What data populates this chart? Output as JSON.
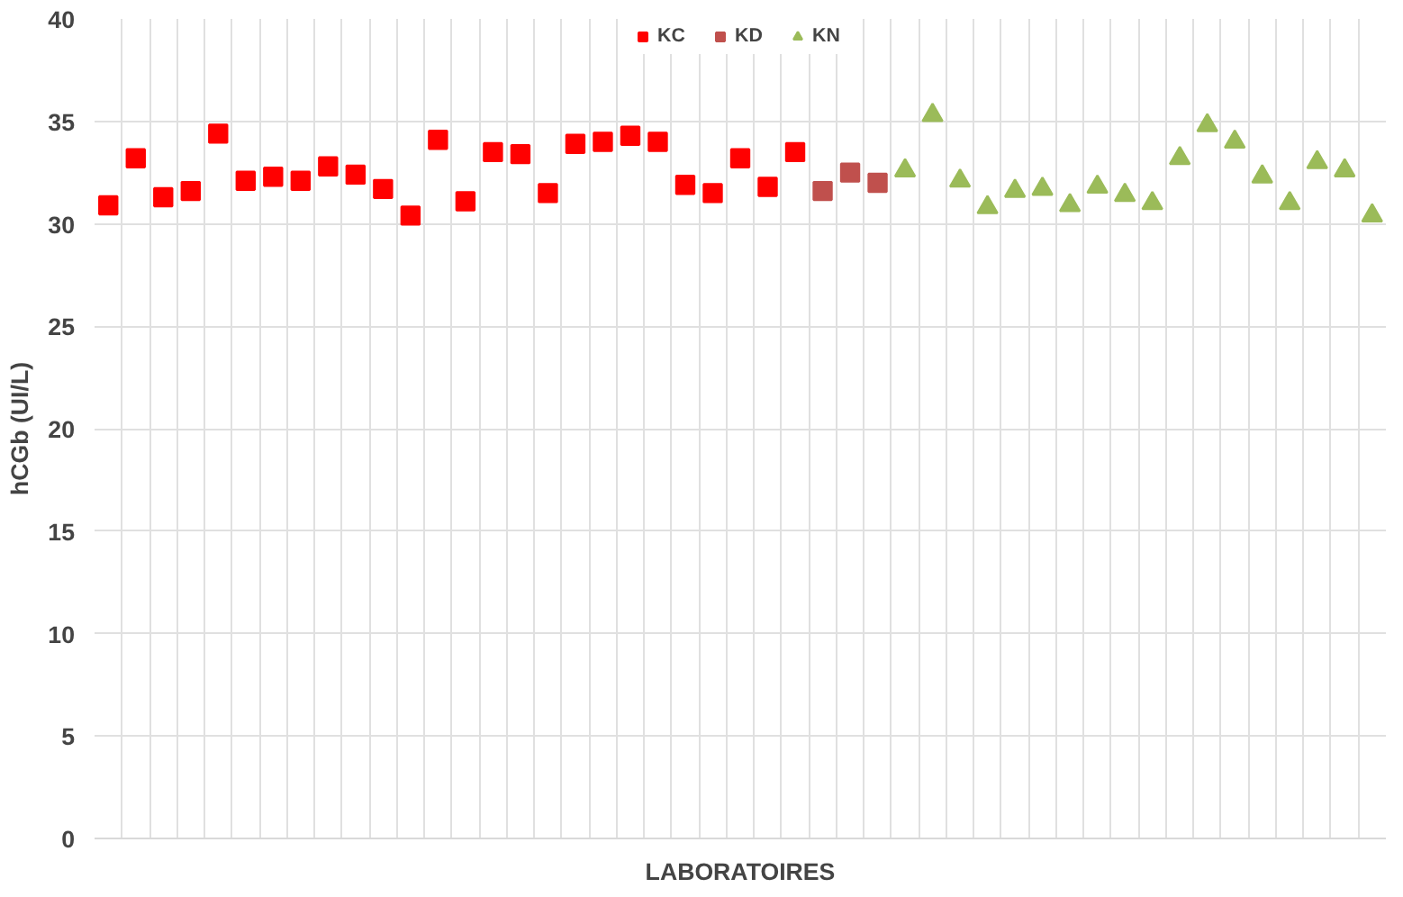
{
  "chart_data": {
    "type": "scatter",
    "xlabel": "LABORATOIRES",
    "ylabel": "hCGb (UI/L)",
    "categories": [
      null,
      null,
      null,
      null,
      null,
      null,
      null,
      null,
      null,
      null,
      null,
      null,
      null,
      null,
      null,
      null,
      null,
      null,
      null,
      null,
      null,
      null,
      null,
      null,
      null,
      null,
      null,
      null,
      null,
      null,
      null,
      null,
      null,
      null,
      null,
      null,
      null,
      null,
      null,
      null,
      null,
      null,
      null,
      null,
      null,
      null,
      null
    ],
    "series": [
      {
        "name": "KC",
        "color": "#ff0000",
        "marker": "square",
        "values": [
          30.9,
          33.2,
          31.3,
          31.6,
          34.4,
          32.1,
          32.3,
          32.1,
          32.8,
          32.4,
          31.7,
          30.4,
          34.1,
          31.1,
          33.5,
          33.4,
          31.5,
          33.9,
          34.0,
          34.3,
          34.0,
          31.9,
          31.5,
          33.2,
          31.8,
          33.5,
          null,
          null,
          null,
          null,
          null,
          null,
          null,
          null,
          null,
          null,
          null,
          null,
          null,
          null,
          null,
          null,
          null,
          null,
          null,
          null,
          null
        ]
      },
      {
        "name": "KD",
        "color": "#c0504d",
        "marker": "square",
        "values": [
          null,
          null,
          null,
          null,
          null,
          null,
          null,
          null,
          null,
          null,
          null,
          null,
          null,
          null,
          null,
          null,
          null,
          null,
          null,
          null,
          null,
          null,
          null,
          null,
          null,
          null,
          31.6,
          32.5,
          32.0,
          null,
          null,
          null,
          null,
          null,
          null,
          null,
          null,
          null,
          null,
          null,
          null,
          null,
          null,
          null,
          null,
          null,
          null
        ]
      },
      {
        "name": "KN",
        "color": "#9bbb59",
        "marker": "triangle",
        "values": [
          null,
          null,
          null,
          null,
          null,
          null,
          null,
          null,
          null,
          null,
          null,
          null,
          null,
          null,
          null,
          null,
          null,
          null,
          null,
          null,
          null,
          null,
          null,
          null,
          null,
          null,
          null,
          null,
          null,
          32.6,
          35.3,
          32.1,
          30.8,
          31.6,
          31.7,
          30.9,
          31.8,
          31.4,
          31.0,
          33.2,
          34.8,
          34.0,
          32.3,
          31.0,
          33.0,
          32.6,
          30.4
        ]
      }
    ],
    "ylim": [
      0,
      40
    ],
    "yticks": [
      0,
      5,
      10,
      15,
      20,
      25,
      30,
      35,
      40
    ],
    "grid": true,
    "legend": "top"
  }
}
